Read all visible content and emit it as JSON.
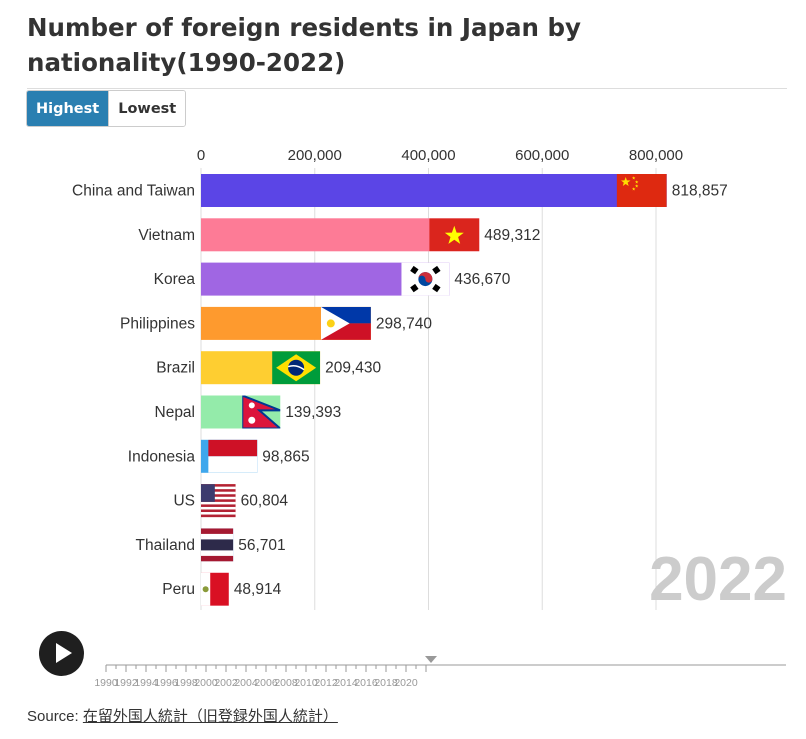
{
  "title": "Number of foreign residents in Japan by nationality(1990-2022)",
  "toggle": {
    "highest": "Highest",
    "lowest": "Lowest"
  },
  "colors": {
    "accent": "#2a7fb1",
    "grid": "#dddddd",
    "year_label": "#cccccc"
  },
  "chart_data": {
    "type": "bar",
    "orientation": "horizontal",
    "title": "Number of foreign residents in Japan by nationality(1990-2022)",
    "current_year": "2022",
    "xlim": [
      0,
      800000
    ],
    "x_ticks": [
      "0",
      "200,000",
      "400,000",
      "600,000",
      "800,000"
    ],
    "x_tick_values": [
      0,
      200000,
      400000,
      600000,
      800000
    ],
    "categories": [
      "China and Taiwan",
      "Vietnam",
      "Korea",
      "Philippines",
      "Brazil",
      "Nepal",
      "Indonesia",
      "US",
      "Thailand",
      "Peru"
    ],
    "values": [
      818857,
      489312,
      436670,
      298740,
      209430,
      139393,
      98865,
      60804,
      56701,
      48914
    ],
    "value_labels": [
      "818,857",
      "489,312",
      "436,670",
      "298,740",
      "209,430",
      "139,393",
      "98,865",
      "60,804",
      "56,701",
      "48,914"
    ],
    "bar_colors": [
      "#5b45e6",
      "#fd7b96",
      "#a066e3",
      "#fe9a2e",
      "#fece31",
      "#94ebaa",
      "#3fa7ec",
      "#f67b68",
      "#9bc7ff",
      "#ff9db0"
    ],
    "flags": [
      "china-flag",
      "vietnam-flag",
      "korea-flag",
      "philippines-flag",
      "brazil-flag",
      "nepal-flag",
      "indonesia-flag",
      "us-flag",
      "thailand-flag",
      "peru-flag"
    ]
  },
  "timeline": {
    "years": [
      "1990",
      "1992",
      "1994",
      "1996",
      "1998",
      "2000",
      "2002",
      "2004",
      "2006",
      "2008",
      "2010",
      "2012",
      "2014",
      "2016",
      "2018",
      "2020"
    ],
    "start_year": 1990,
    "end_year": 2022,
    "current_year": 2022,
    "play_icon": "play-icon"
  },
  "source": {
    "label": "Source:",
    "link_text": "在留外国人統計（旧登録外国人統計）"
  }
}
